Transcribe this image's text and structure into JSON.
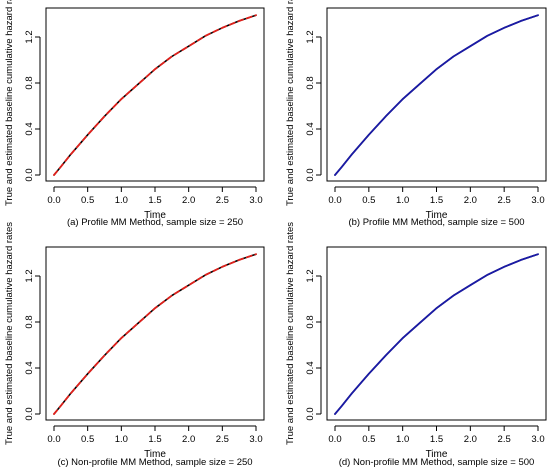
{
  "panels": [
    {
      "caption": "(a) Profile MM Method, sample size = 250",
      "xlabel": "Time",
      "ylabel": "True and estimated baseline cumulative hazard rates",
      "xticks": [
        "0.0",
        "0.5",
        "1.0",
        "1.5",
        "2.0",
        "2.5",
        "3.0"
      ],
      "yticks": [
        "0.0",
        "0.4",
        "0.8",
        "1.2"
      ],
      "ylabel_side": "left"
    },
    {
      "caption": "(b) Profile MM Method, sample size = 500",
      "xlabel": "Time",
      "ylabel": "True and estimated baseline cumulative hazard rates",
      "xticks": [
        "0.0",
        "0.5",
        "1.0",
        "1.5",
        "2.0",
        "2.5",
        "3.0"
      ],
      "yticks": [
        "0.0",
        "0.4",
        "0.8",
        "1.2"
      ],
      "ylabel_side": "right"
    },
    {
      "caption": "(c) Non-profile MM Method, sample size = 250",
      "xlabel": "Time",
      "ylabel": "True and estimated baseline cumulative hazard rates",
      "xticks": [
        "0.0",
        "0.5",
        "1.0",
        "1.5",
        "2.0",
        "2.5",
        "3.0"
      ],
      "yticks": [
        "0.0",
        "0.4",
        "0.8",
        "1.2"
      ],
      "ylabel_side": "left"
    },
    {
      "caption": "(d) Non-profile MM Method, sample size = 500",
      "xlabel": "Time",
      "ylabel": "True and estimated baseline cumulative hazard rates",
      "xticks": [
        "0.0",
        "0.5",
        "1.0",
        "1.5",
        "2.0",
        "2.5",
        "3.0"
      ],
      "yticks": [
        "0.0",
        "0.4",
        "0.8",
        "1.2"
      ],
      "ylabel_side": "right"
    }
  ],
  "chart_data": [
    {
      "type": "line",
      "xlim": [
        0,
        3
      ],
      "ylim": [
        0,
        1.4
      ],
      "grid": false,
      "series": [
        {
          "color": "#000000",
          "style": "solid",
          "x": [
            0,
            0.1,
            0.25,
            0.5,
            0.75,
            1,
            1.25,
            1.5,
            1.75,
            2,
            2.25,
            2.5,
            2.75,
            3
          ],
          "y": [
            0,
            0.07,
            0.18,
            0.35,
            0.51,
            0.66,
            0.79,
            0.92,
            1.03,
            1.12,
            1.21,
            1.28,
            1.34,
            1.39
          ]
        },
        {
          "color": "#e0201b",
          "style": "dashed",
          "x": [
            0,
            0.1,
            0.25,
            0.5,
            0.75,
            1,
            1.25,
            1.5,
            1.75,
            2,
            2.25,
            2.5,
            2.75,
            3
          ],
          "y": [
            0,
            0.07,
            0.18,
            0.35,
            0.51,
            0.66,
            0.79,
            0.92,
            1.03,
            1.12,
            1.21,
            1.28,
            1.34,
            1.39
          ]
        }
      ]
    },
    {
      "type": "line",
      "xlim": [
        0,
        3
      ],
      "ylim": [
        0,
        1.4
      ],
      "grid": false,
      "series": [
        {
          "color": "#000000",
          "style": "solid",
          "x": [
            0,
            0.1,
            0.25,
            0.5,
            0.75,
            1,
            1.25,
            1.5,
            1.75,
            2,
            2.25,
            2.5,
            2.75,
            3
          ],
          "y": [
            0,
            0.07,
            0.18,
            0.35,
            0.51,
            0.66,
            0.79,
            0.92,
            1.03,
            1.12,
            1.21,
            1.28,
            1.34,
            1.39
          ]
        },
        {
          "color": "#1a1aa6",
          "style": "solid",
          "x": [
            0,
            0.1,
            0.25,
            0.5,
            0.75,
            1,
            1.25,
            1.5,
            1.75,
            2,
            2.25,
            2.5,
            2.75,
            3
          ],
          "y": [
            0,
            0.07,
            0.18,
            0.35,
            0.51,
            0.66,
            0.79,
            0.92,
            1.03,
            1.12,
            1.21,
            1.28,
            1.34,
            1.39
          ]
        }
      ]
    },
    {
      "type": "line",
      "xlim": [
        0,
        3
      ],
      "ylim": [
        0,
        1.4
      ],
      "grid": false,
      "series": [
        {
          "color": "#000000",
          "style": "solid",
          "x": [
            0,
            0.1,
            0.25,
            0.5,
            0.75,
            1,
            1.25,
            1.5,
            1.75,
            2,
            2.25,
            2.5,
            2.75,
            3
          ],
          "y": [
            0,
            0.07,
            0.18,
            0.35,
            0.51,
            0.66,
            0.79,
            0.92,
            1.03,
            1.12,
            1.21,
            1.28,
            1.34,
            1.39
          ]
        },
        {
          "color": "#e0201b",
          "style": "dashed",
          "x": [
            0,
            0.1,
            0.25,
            0.5,
            0.75,
            1,
            1.25,
            1.5,
            1.75,
            2,
            2.25,
            2.5,
            2.75,
            3
          ],
          "y": [
            0,
            0.07,
            0.18,
            0.35,
            0.51,
            0.66,
            0.79,
            0.92,
            1.03,
            1.12,
            1.21,
            1.28,
            1.34,
            1.39
          ]
        }
      ]
    },
    {
      "type": "line",
      "xlim": [
        0,
        3
      ],
      "ylim": [
        0,
        1.4
      ],
      "grid": false,
      "series": [
        {
          "color": "#000000",
          "style": "solid",
          "x": [
            0,
            0.1,
            0.25,
            0.5,
            0.75,
            1,
            1.25,
            1.5,
            1.75,
            2,
            2.25,
            2.5,
            2.75,
            3
          ],
          "y": [
            0,
            0.07,
            0.18,
            0.35,
            0.51,
            0.66,
            0.79,
            0.92,
            1.03,
            1.12,
            1.21,
            1.28,
            1.34,
            1.39
          ]
        },
        {
          "color": "#1a1aa6",
          "style": "solid",
          "x": [
            0,
            0.1,
            0.25,
            0.5,
            0.75,
            1,
            1.25,
            1.5,
            1.75,
            2,
            2.25,
            2.5,
            2.75,
            3
          ],
          "y": [
            0,
            0.07,
            0.18,
            0.35,
            0.51,
            0.66,
            0.79,
            0.92,
            1.03,
            1.12,
            1.21,
            1.28,
            1.34,
            1.39
          ]
        }
      ]
    }
  ]
}
